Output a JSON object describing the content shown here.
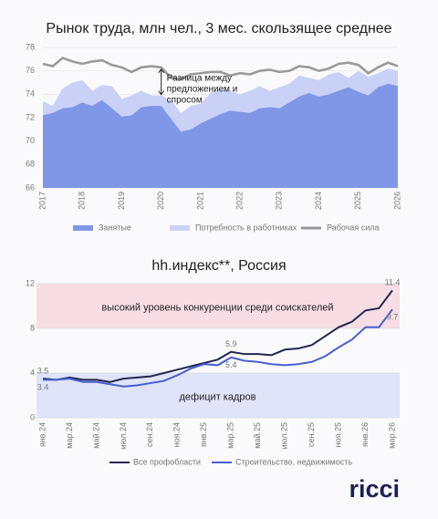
{
  "chart_data": [
    {
      "type": "area",
      "title": "Рынок труда, млн чел., 3 мес. скользящее среднее",
      "x": [
        2017,
        2017.25,
        2017.5,
        2017.75,
        2018,
        2018.25,
        2018.5,
        2018.75,
        2019,
        2019.25,
        2019.5,
        2019.75,
        2020,
        2020.25,
        2020.5,
        2020.75,
        2021,
        2021.25,
        2021.5,
        2021.75,
        2022,
        2022.25,
        2022.5,
        2022.75,
        2023,
        2023.25,
        2023.5,
        2023.75,
        2024,
        2024.25,
        2024.5,
        2024.75,
        2025,
        2025.25,
        2025.5,
        2025.75,
        2026
      ],
      "series": [
        {
          "name": "Потребность в работниках",
          "type": "area",
          "color": "#c9d2f6",
          "values": [
            73.4,
            73.0,
            74.5,
            75.0,
            75.2,
            74.3,
            74.8,
            74.7,
            73.6,
            73.9,
            74.3,
            73.9,
            73.9,
            73.5,
            72.4,
            73.0,
            73.2,
            74.1,
            74.5,
            74.3,
            74.0,
            74.3,
            74.7,
            74.3,
            74.6,
            74.9,
            75.6,
            75.4,
            75.2,
            75.7,
            75.9,
            75.4,
            76.0,
            75.5,
            75.8,
            76.2,
            76.0
          ]
        },
        {
          "name": "Занятые",
          "type": "area",
          "color": "#7f97e6",
          "values": [
            72.2,
            72.4,
            72.8,
            72.9,
            73.3,
            73.0,
            73.5,
            72.8,
            72.1,
            72.2,
            72.9,
            73.0,
            73.0,
            71.9,
            70.8,
            71.0,
            71.5,
            71.9,
            72.3,
            72.6,
            72.5,
            72.4,
            72.8,
            72.9,
            72.8,
            73.3,
            73.8,
            74.1,
            73.8,
            74.0,
            74.3,
            74.6,
            74.2,
            73.9,
            74.6,
            74.9,
            74.7
          ]
        },
        {
          "name": "Рабочая сила",
          "type": "line",
          "color": "#9a9a9a",
          "values": [
            76.6,
            76.4,
            77.1,
            76.8,
            76.6,
            76.8,
            76.9,
            76.5,
            76.3,
            75.9,
            76.3,
            76.4,
            76.3,
            75.4,
            75.3,
            75.7,
            75.8,
            75.9,
            75.9,
            75.6,
            75.8,
            75.7,
            76.0,
            76.1,
            75.9,
            76.0,
            76.4,
            76.3,
            76.0,
            76.2,
            76.6,
            76.7,
            76.5,
            75.8,
            76.3,
            76.7,
            76.4
          ]
        }
      ],
      "legend_order": [
        1,
        0,
        2
      ],
      "annotation": [
        "Разница между",
        "предложением и",
        "спросом"
      ],
      "xlim": [
        2017,
        2026
      ],
      "xticks": [
        2017,
        2018,
        2019,
        2020,
        2021,
        2022,
        2023,
        2024,
        2025,
        2026
      ],
      "ylim": [
        66,
        78
      ],
      "yticks": [
        66,
        68,
        70,
        72,
        74,
        76,
        78
      ],
      "grid": true
    },
    {
      "type": "line",
      "title": "hh.индекс**, Россия",
      "categories": [
        "янв.24",
        null,
        "мар.24",
        null,
        "май.24",
        null,
        "июл.24",
        null,
        "сен.24",
        null,
        "ноя.24",
        null,
        "янв.25",
        null,
        "мар.25",
        null,
        "май.25",
        null,
        "июл.25",
        null,
        "сен.25",
        null,
        "ноя.25",
        null,
        "янв.26",
        null,
        "мар.26"
      ],
      "series": [
        {
          "name": "Все профобласти",
          "color": "#23264f",
          "values": [
            3.5,
            3.4,
            3.6,
            3.4,
            3.4,
            3.2,
            3.5,
            3.6,
            3.7,
            4.0,
            4.3,
            4.6,
            4.9,
            5.2,
            5.9,
            5.7,
            5.7,
            5.6,
            6.1,
            6.2,
            6.5,
            7.3,
            8.1,
            8.6,
            9.6,
            9.8,
            11.4
          ],
          "value_labels": [
            "3.5",
            null,
            null,
            null,
            null,
            null,
            null,
            null,
            null,
            null,
            null,
            null,
            null,
            null,
            "5.9",
            null,
            null,
            null,
            null,
            null,
            null,
            null,
            null,
            null,
            null,
            null,
            "11.4"
          ]
        },
        {
          "name": "Строительство, недвижимость",
          "color": "#4a5fd0",
          "values": [
            3.4,
            3.4,
            3.5,
            3.2,
            3.2,
            3.0,
            2.8,
            2.9,
            3.1,
            3.3,
            3.8,
            4.4,
            4.8,
            4.7,
            5.4,
            5.1,
            5.0,
            4.8,
            4.7,
            4.8,
            5.0,
            5.5,
            6.3,
            7.0,
            8.1,
            8.1,
            9.7
          ],
          "value_labels": [
            "3.4",
            null,
            null,
            null,
            null,
            null,
            null,
            null,
            null,
            null,
            null,
            null,
            null,
            null,
            "5.4",
            null,
            null,
            null,
            null,
            null,
            null,
            null,
            null,
            null,
            null,
            null,
            "9.7"
          ]
        }
      ],
      "bands": [
        {
          "from": 8,
          "to": 12,
          "color": "#f8dde4",
          "label": "высокий уровень конкуренции среди соискателей"
        },
        {
          "from": 0,
          "to": 4,
          "color": "#dfe4f8",
          "label": "дефицит кадров"
        }
      ],
      "ylim": [
        0,
        12
      ],
      "yticks": [
        0,
        4,
        8,
        12
      ],
      "grid": true
    }
  ],
  "logo": "ricci"
}
